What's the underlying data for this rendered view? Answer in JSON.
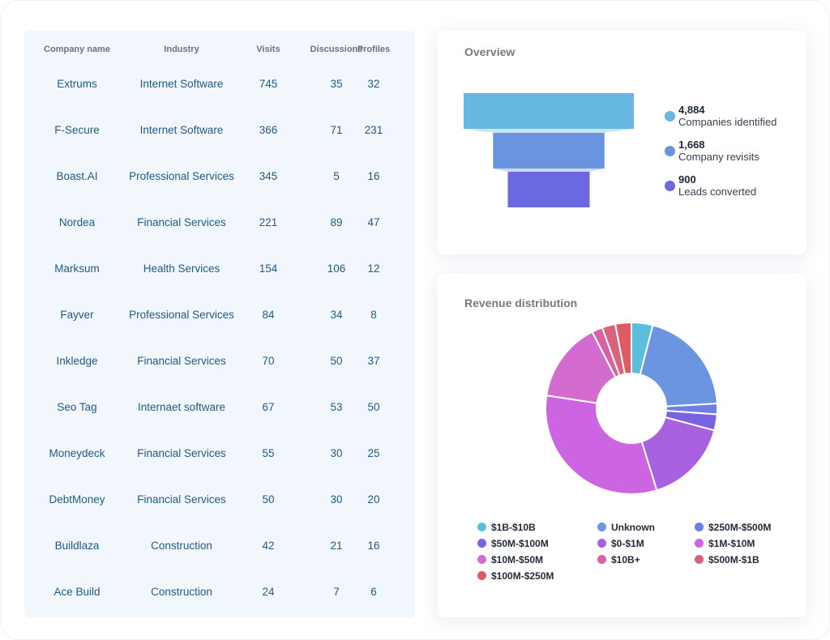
{
  "table": {
    "headers": {
      "company": "Company name",
      "industry": "Industry",
      "visits": "Visits",
      "discussions": "Discussions",
      "profiles": "Profiles"
    },
    "rows": [
      {
        "company": "Extrums",
        "industry": "Internet Software",
        "visits": "745",
        "discussions": "35",
        "profiles": "32"
      },
      {
        "company": "F-Secure",
        "industry": "Internet Software",
        "visits": "366",
        "discussions": "71",
        "profiles": "231"
      },
      {
        "company": "Boast.AI",
        "industry": "Professional Services",
        "visits": "345",
        "discussions": "5",
        "profiles": "16"
      },
      {
        "company": "Nordea",
        "industry": "Financial Services",
        "visits": "221",
        "discussions": "89",
        "profiles": "47"
      },
      {
        "company": "Marksum",
        "industry": "Health Services",
        "visits": "154",
        "discussions": "106",
        "profiles": "12"
      },
      {
        "company": "Fayver",
        "industry": "Professional Services",
        "visits": "84",
        "discussions": "34",
        "profiles": "8"
      },
      {
        "company": "Inkledge",
        "industry": "Financial Services",
        "visits": "70",
        "discussions": "50",
        "profiles": "37"
      },
      {
        "company": "Seo Tag",
        "industry": "Internaet software",
        "visits": "67",
        "discussions": "53",
        "profiles": "50"
      },
      {
        "company": "Moneydeck",
        "industry": "Financial Services",
        "visits": "55",
        "discussions": "30",
        "profiles": "25"
      },
      {
        "company": "DebtMoney",
        "industry": "Financial Services",
        "visits": "50",
        "discussions": "30",
        "profiles": "20"
      },
      {
        "company": "Buildlaza",
        "industry": "Construction",
        "visits": "42",
        "discussions": "21",
        "profiles": "16"
      },
      {
        "company": "Ace Build",
        "industry": "Construction",
        "visits": "24",
        "discussions": "7",
        "profiles": "6"
      }
    ]
  },
  "overview": {
    "title": "Overview",
    "stages": [
      {
        "value": "4,884",
        "amount": 4884,
        "label": "Companies identified",
        "color": "#67b8e0"
      },
      {
        "value": "1,668",
        "amount": 1668,
        "label": "Company revisits",
        "color": "#6a93e0"
      },
      {
        "value": "900",
        "amount": 900,
        "label": "Leads converted",
        "color": "#6b68e0"
      }
    ]
  },
  "revenue": {
    "title": "Revenue distribution",
    "chart_data": {
      "type": "pie",
      "donut": true,
      "categories": [
        "$1B-$10B",
        "Unknown",
        "$250M-$500M",
        "$50M-$100M",
        "$0-$1M",
        "$1M-$10M",
        "$10M-$50M",
        "$10B+",
        "$500M-$1B",
        "$100M-$250M"
      ],
      "values": [
        4,
        20,
        2,
        3,
        16,
        32,
        15,
        2,
        2.5,
        3
      ],
      "colors": [
        "#5bbfdc",
        "#6b95e0",
        "#6e7ee4",
        "#7a63e0",
        "#a862e0",
        "#cd64e2",
        "#d46cd0",
        "#d862a4",
        "#d9637c",
        "#e05a64"
      ],
      "legend_position": "bottom"
    }
  }
}
